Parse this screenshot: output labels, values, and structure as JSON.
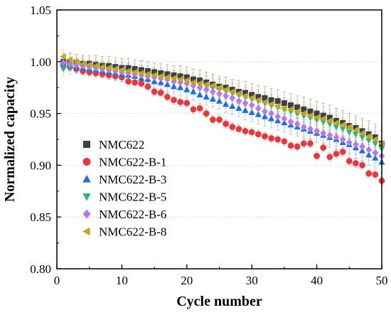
{
  "chart_data": {
    "type": "scatter",
    "xlabel": "Cycle number",
    "ylabel": "Normalized capacity",
    "xlim": [
      0,
      50
    ],
    "ylim": [
      0.8,
      1.05
    ],
    "x_ticks": [
      "0",
      "10",
      "20",
      "30",
      "40",
      "50"
    ],
    "y_ticks": [
      "0.80",
      "0.85",
      "0.90",
      "0.95",
      "1.00",
      "1.05"
    ],
    "grid": "horizontal-dotted",
    "legend_position": "bottom-left",
    "error_bars": true,
    "series": [
      {
        "name": "NMC622",
        "marker": "square",
        "color": "#404040",
        "x": [
          1,
          2,
          3,
          4,
          5,
          6,
          7,
          8,
          9,
          10,
          11,
          12,
          13,
          14,
          15,
          16,
          17,
          18,
          19,
          20,
          21,
          22,
          23,
          24,
          25,
          26,
          27,
          28,
          29,
          30,
          31,
          32,
          33,
          34,
          35,
          36,
          37,
          38,
          39,
          40,
          41,
          42,
          43,
          44,
          45,
          46,
          47,
          48,
          49,
          50
        ],
        "y": [
          1.0,
          1.0,
          0.999,
          0.998,
          0.998,
          0.997,
          0.996,
          0.996,
          0.995,
          0.994,
          0.994,
          0.993,
          0.992,
          0.991,
          0.99,
          0.989,
          0.988,
          0.987,
          0.986,
          0.985,
          0.983,
          0.982,
          0.98,
          0.978,
          0.976,
          0.975,
          0.973,
          0.971,
          0.97,
          0.968,
          0.966,
          0.965,
          0.963,
          0.962,
          0.96,
          0.958,
          0.956,
          0.954,
          0.952,
          0.95,
          0.948,
          0.946,
          0.943,
          0.941,
          0.938,
          0.936,
          0.933,
          0.93,
          0.927,
          0.921
        ],
        "err": [
          0.008,
          0.008,
          0.008,
          0.008,
          0.008,
          0.009,
          0.009,
          0.009,
          0.009,
          0.009,
          0.009,
          0.009,
          0.009,
          0.009,
          0.009,
          0.009,
          0.009,
          0.009,
          0.01,
          0.01,
          0.01,
          0.01,
          0.01,
          0.01,
          0.01,
          0.01,
          0.01,
          0.011,
          0.011,
          0.011,
          0.011,
          0.011,
          0.011,
          0.011,
          0.011,
          0.011,
          0.011,
          0.012,
          0.012,
          0.012,
          0.012,
          0.012,
          0.012,
          0.012,
          0.012,
          0.012,
          0.012,
          0.013,
          0.013,
          0.013
        ]
      },
      {
        "name": "NMC622-B-1",
        "marker": "circle",
        "color": "#e8383d",
        "x": [
          1,
          2,
          3,
          4,
          5,
          6,
          7,
          8,
          9,
          10,
          11,
          12,
          13,
          14,
          15,
          16,
          17,
          18,
          19,
          20,
          21,
          22,
          23,
          24,
          25,
          26,
          27,
          28,
          29,
          30,
          31,
          32,
          33,
          34,
          35,
          36,
          37,
          38,
          39,
          40,
          41,
          42,
          43,
          44,
          45,
          46,
          47,
          48,
          49,
          50
        ],
        "y": [
          0.998,
          0.995,
          0.993,
          0.991,
          0.99,
          0.989,
          0.988,
          0.987,
          0.986,
          0.985,
          0.981,
          0.98,
          0.979,
          0.976,
          0.971,
          0.97,
          0.966,
          0.963,
          0.961,
          0.96,
          0.954,
          0.955,
          0.95,
          0.944,
          0.944,
          0.94,
          0.937,
          0.935,
          0.933,
          0.932,
          0.93,
          0.928,
          0.926,
          0.925,
          0.923,
          0.919,
          0.918,
          0.921,
          0.921,
          0.909,
          0.917,
          0.908,
          0.911,
          0.913,
          0.904,
          0.902,
          0.9,
          0.892,
          0.891,
          0.885
        ],
        "err": [
          0.004,
          0.004,
          0.004,
          0.004,
          0.004,
          0.004,
          0.004,
          0.004,
          0.004,
          0.004,
          0.004,
          0.004,
          0.004,
          0.004,
          0.004,
          0.004,
          0.004,
          0.004,
          0.004,
          0.004,
          0.004,
          0.004,
          0.004,
          0.004,
          0.004,
          0.004,
          0.004,
          0.004,
          0.004,
          0.004,
          0.004,
          0.004,
          0.004,
          0.004,
          0.004,
          0.004,
          0.004,
          0.004,
          0.004,
          0.004,
          0.004,
          0.004,
          0.004,
          0.004,
          0.004,
          0.004,
          0.004,
          0.004,
          0.004,
          0.004
        ]
      },
      {
        "name": "NMC622-B-3",
        "marker": "triangle-up",
        "color": "#1e6fe0",
        "x": [
          1,
          2,
          3,
          4,
          5,
          6,
          7,
          8,
          9,
          10,
          11,
          12,
          13,
          14,
          15,
          16,
          17,
          18,
          19,
          20,
          21,
          22,
          23,
          24,
          25,
          26,
          27,
          28,
          29,
          30,
          31,
          32,
          33,
          34,
          35,
          36,
          37,
          38,
          39,
          40,
          41,
          42,
          43,
          44,
          45,
          46,
          47,
          48,
          49,
          50
        ],
        "y": [
          0.998,
          0.997,
          0.995,
          0.994,
          0.993,
          0.992,
          0.991,
          0.99,
          0.989,
          0.988,
          0.987,
          0.986,
          0.984,
          0.983,
          0.981,
          0.98,
          0.978,
          0.976,
          0.975,
          0.973,
          0.971,
          0.968,
          0.966,
          0.964,
          0.962,
          0.959,
          0.957,
          0.955,
          0.953,
          0.951,
          0.949,
          0.947,
          0.945,
          0.943,
          0.941,
          0.939,
          0.937,
          0.935,
          0.933,
          0.931,
          0.929,
          0.927,
          0.925,
          0.922,
          0.92,
          0.917,
          0.914,
          0.91,
          0.907,
          0.903
        ],
        "err": [
          0.006,
          0.006,
          0.006,
          0.006,
          0.006,
          0.006,
          0.006,
          0.007,
          0.007,
          0.007,
          0.007,
          0.007,
          0.007,
          0.007,
          0.007,
          0.007,
          0.007,
          0.007,
          0.008,
          0.008,
          0.008,
          0.008,
          0.008,
          0.008,
          0.008,
          0.008,
          0.008,
          0.008,
          0.009,
          0.009,
          0.009,
          0.009,
          0.009,
          0.009,
          0.009,
          0.009,
          0.009,
          0.009,
          0.009,
          0.009,
          0.01,
          0.01,
          0.01,
          0.01,
          0.01,
          0.01,
          0.01,
          0.01,
          0.01,
          0.01
        ]
      },
      {
        "name": "NMC622-B-5",
        "marker": "triangle-down",
        "color": "#2bb673",
        "x": [
          1,
          2,
          3,
          4,
          5,
          6,
          7,
          8,
          9,
          10,
          11,
          12,
          13,
          14,
          15,
          16,
          17,
          18,
          19,
          20,
          21,
          22,
          23,
          24,
          25,
          26,
          27,
          28,
          29,
          30,
          31,
          32,
          33,
          34,
          35,
          36,
          37,
          38,
          39,
          40,
          41,
          42,
          43,
          44,
          45,
          46,
          47,
          48,
          49,
          50
        ],
        "y": [
          0.993,
          0.995,
          0.996,
          0.996,
          0.995,
          0.994,
          0.993,
          0.993,
          0.992,
          0.991,
          0.99,
          0.989,
          0.988,
          0.987,
          0.986,
          0.985,
          0.984,
          0.983,
          0.982,
          0.981,
          0.979,
          0.978,
          0.977,
          0.975,
          0.974,
          0.972,
          0.97,
          0.968,
          0.966,
          0.964,
          0.962,
          0.96,
          0.958,
          0.956,
          0.954,
          0.952,
          0.95,
          0.948,
          0.946,
          0.944,
          0.942,
          0.94,
          0.937,
          0.935,
          0.932,
          0.93,
          0.927,
          0.924,
          0.921,
          0.916
        ],
        "err": [
          0.007,
          0.007,
          0.007,
          0.007,
          0.007,
          0.007,
          0.007,
          0.007,
          0.007,
          0.008,
          0.008,
          0.008,
          0.008,
          0.008,
          0.008,
          0.008,
          0.008,
          0.008,
          0.008,
          0.008,
          0.008,
          0.009,
          0.009,
          0.009,
          0.009,
          0.009,
          0.009,
          0.009,
          0.009,
          0.009,
          0.009,
          0.01,
          0.01,
          0.01,
          0.01,
          0.01,
          0.01,
          0.01,
          0.01,
          0.01,
          0.01,
          0.011,
          0.011,
          0.011,
          0.011,
          0.011,
          0.011,
          0.011,
          0.011,
          0.011
        ]
      },
      {
        "name": "NMC622-B-6",
        "marker": "diamond",
        "color": "#b77be8",
        "x": [
          1,
          2,
          3,
          4,
          5,
          6,
          7,
          8,
          9,
          10,
          11,
          12,
          13,
          14,
          15,
          16,
          17,
          18,
          19,
          20,
          21,
          22,
          23,
          24,
          25,
          26,
          27,
          28,
          29,
          30,
          31,
          32,
          33,
          34,
          35,
          36,
          37,
          38,
          39,
          40,
          41,
          42,
          43,
          44,
          45,
          46,
          47,
          48,
          49,
          50
        ],
        "y": [
          0.999,
          0.998,
          0.997,
          0.996,
          0.995,
          0.994,
          0.993,
          0.992,
          0.991,
          0.99,
          0.989,
          0.988,
          0.987,
          0.986,
          0.985,
          0.984,
          0.983,
          0.981,
          0.98,
          0.979,
          0.977,
          0.975,
          0.973,
          0.971,
          0.969,
          0.967,
          0.965,
          0.962,
          0.96,
          0.958,
          0.955,
          0.952,
          0.95,
          0.947,
          0.945,
          0.942,
          0.94,
          0.937,
          0.935,
          0.933,
          0.931,
          0.929,
          0.927,
          0.925,
          0.922,
          0.92,
          0.918,
          0.915,
          0.912,
          0.909
        ],
        "err": [
          0.006,
          0.006,
          0.006,
          0.006,
          0.006,
          0.006,
          0.006,
          0.006,
          0.006,
          0.007,
          0.007,
          0.007,
          0.007,
          0.007,
          0.007,
          0.007,
          0.007,
          0.007,
          0.007,
          0.007,
          0.008,
          0.008,
          0.008,
          0.008,
          0.008,
          0.008,
          0.008,
          0.008,
          0.008,
          0.008,
          0.008,
          0.008,
          0.009,
          0.009,
          0.009,
          0.009,
          0.009,
          0.009,
          0.009,
          0.009,
          0.009,
          0.009,
          0.009,
          0.01,
          0.01,
          0.01,
          0.01,
          0.01,
          0.01,
          0.01
        ]
      },
      {
        "name": "NMC622-B-8",
        "marker": "triangle-left",
        "color": "#c8a418",
        "x": [
          1,
          2,
          3,
          4,
          5,
          6,
          7,
          8,
          9,
          10,
          11,
          12,
          13,
          14,
          15,
          16,
          17,
          18,
          19,
          20,
          21,
          22,
          23,
          24,
          25,
          26,
          27,
          28,
          29,
          30,
          31,
          32,
          33,
          34,
          35,
          36,
          37,
          38,
          39,
          40,
          41,
          42,
          43,
          44,
          45,
          46,
          47,
          48,
          49,
          50
        ],
        "y": [
          1.005,
          1.002,
          1.0,
          0.998,
          0.997,
          0.996,
          0.995,
          0.994,
          0.993,
          0.992,
          0.991,
          0.99,
          0.989,
          0.988,
          0.987,
          0.986,
          0.985,
          0.984,
          0.983,
          0.982,
          0.98,
          0.979,
          0.978,
          0.977,
          0.975,
          0.973,
          0.971,
          0.969,
          0.967,
          0.965,
          0.963,
          0.961,
          0.959,
          0.957,
          0.955,
          0.954,
          0.952,
          0.95,
          0.948,
          0.946,
          0.945,
          0.943,
          0.941,
          0.939,
          0.937,
          0.934,
          0.931,
          0.928,
          0.925,
          0.921
        ],
        "err": [
          0.007,
          0.007,
          0.007,
          0.007,
          0.007,
          0.007,
          0.007,
          0.008,
          0.008,
          0.008,
          0.008,
          0.008,
          0.008,
          0.008,
          0.008,
          0.008,
          0.008,
          0.008,
          0.009,
          0.009,
          0.009,
          0.009,
          0.009,
          0.009,
          0.009,
          0.009,
          0.009,
          0.01,
          0.01,
          0.01,
          0.01,
          0.01,
          0.01,
          0.01,
          0.01,
          0.01,
          0.011,
          0.011,
          0.011,
          0.011,
          0.011,
          0.011,
          0.011,
          0.011,
          0.011,
          0.012,
          0.012,
          0.012,
          0.012,
          0.012
        ]
      }
    ]
  }
}
